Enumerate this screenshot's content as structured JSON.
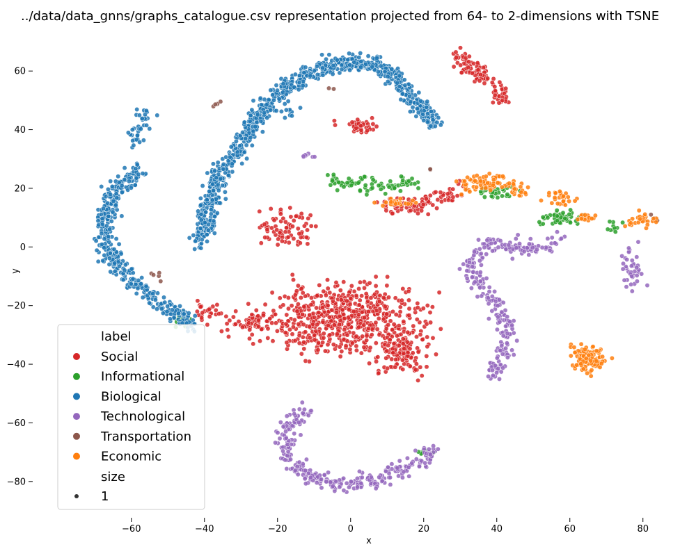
{
  "chart_data": {
    "type": "scatter",
    "title": "../data/data_gnns/graphs_catalogue.csv representation projected from 64- to 2-dimensions with TSNE",
    "xlabel": "x",
    "ylabel": "y",
    "xlim": [
      -75,
      85
    ],
    "ylim": [
      -90,
      70
    ],
    "xticks": [
      -60,
      -40,
      -20,
      0,
      20,
      40,
      60,
      80
    ],
    "yticks": [
      60,
      40,
      20,
      0,
      -20,
      -40,
      -60,
      -80
    ],
    "xtick_labels": [
      "−60",
      "−40",
      "−20",
      "0",
      "20",
      "40",
      "60",
      "80"
    ],
    "ytick_labels": [
      "60",
      "40",
      "20",
      "0",
      "−20",
      "−40",
      "−60",
      "−80"
    ],
    "grid": false,
    "legend": {
      "placement": "lower-left",
      "title": "label",
      "size_title": "size",
      "size_values": [
        "1"
      ]
    },
    "series": [
      {
        "name": "Social",
        "color": "#d62728",
        "clusters": [
          {
            "shape": "blob",
            "center": [
              -1,
              -25
            ],
            "spread": [
              17,
              10
            ],
            "n": 620
          },
          {
            "shape": "blob",
            "center": [
              14,
              -36
            ],
            "spread": [
              6,
              6
            ],
            "n": 120
          },
          {
            "shape": "blob",
            "center": [
              -26,
              -26
            ],
            "spread": [
              7,
              3
            ],
            "n": 70
          },
          {
            "shape": "blob",
            "center": [
              -17,
              7
            ],
            "spread": [
              6,
              5
            ],
            "n": 80
          },
          {
            "shape": "blob",
            "center": [
              3,
              41
            ],
            "spread": [
              5,
              2
            ],
            "n": 40
          },
          {
            "shape": "arc",
            "points": [
              [
                29,
                65
              ],
              [
                34,
                60
              ],
              [
                40,
                54
              ],
              [
                42,
                50
              ]
            ],
            "n": 110
          },
          {
            "shape": "arc",
            "points": [
              [
                9,
                14
              ],
              [
                18,
                14
              ],
              [
                26,
                17
              ],
              [
                31,
                20
              ]
            ],
            "n": 90
          },
          {
            "shape": "blob",
            "center": [
              -40,
              -22
            ],
            "spread": [
              4,
              3
            ],
            "n": 25
          }
        ]
      },
      {
        "name": "Informational",
        "color": "#2ca02c",
        "clusters": [
          {
            "shape": "arc",
            "points": [
              [
                -6,
                23
              ],
              [
                4,
                21
              ],
              [
                12,
                21
              ],
              [
                18,
                22
              ]
            ],
            "n": 80
          },
          {
            "shape": "blob",
            "center": [
              57,
              10
            ],
            "spread": [
              5,
              2
            ],
            "n": 50
          },
          {
            "shape": "blob",
            "center": [
              40,
              19
            ],
            "spread": [
              4,
              2
            ],
            "n": 30
          },
          {
            "shape": "blob",
            "center": [
              -46,
              -25
            ],
            "spread": [
              3,
              2
            ],
            "n": 25
          },
          {
            "shape": "blob",
            "center": [
              20,
              -70
            ],
            "spread": [
              3,
              1
            ],
            "n": 8
          },
          {
            "shape": "blob",
            "center": [
              72,
              7
            ],
            "spread": [
              2,
              2
            ],
            "n": 10
          }
        ]
      },
      {
        "name": "Biological",
        "color": "#1f77b4",
        "clusters": [
          {
            "shape": "arc",
            "points": [
              [
                -41,
                2
              ],
              [
                -37,
                22
              ],
              [
                -31,
                33
              ],
              [
                -24,
                47
              ],
              [
                -16,
                56
              ],
              [
                -8,
                61
              ],
              [
                0,
                63
              ],
              [
                8,
                62
              ],
              [
                13,
                57
              ],
              [
                18,
                49
              ],
              [
                23,
                42
              ]
            ],
            "n": 900
          },
          {
            "shape": "arc",
            "points": [
              [
                -58,
                26
              ],
              [
                -65,
                18
              ],
              [
                -68,
                6
              ],
              [
                -65,
                -5
              ],
              [
                -59,
                -12
              ],
              [
                -51,
                -20
              ],
              [
                -43,
                -27
              ]
            ],
            "n": 420
          },
          {
            "shape": "arc",
            "points": [
              [
                -60,
                35
              ],
              [
                -58,
                40
              ],
              [
                -56,
                47
              ]
            ],
            "n": 40
          },
          {
            "shape": "blob",
            "center": [
              -17,
              46
            ],
            "spread": [
              2,
              2
            ],
            "n": 10
          }
        ]
      },
      {
        "name": "Technological",
        "color": "#9467bd",
        "clusters": [
          {
            "shape": "arc",
            "points": [
              [
                -11,
                -55
              ],
              [
                -17,
                -60
              ],
              [
                -18,
                -70
              ],
              [
                -12,
                -78
              ],
              [
                -2,
                -81
              ],
              [
                6,
                -80
              ],
              [
                14,
                -76
              ],
              [
                20,
                -72
              ],
              [
                23,
                -69
              ]
            ],
            "n": 300
          },
          {
            "shape": "arc",
            "points": [
              [
                33,
                -7
              ],
              [
                36,
                -13
              ],
              [
                40,
                -19
              ],
              [
                43,
                -28
              ],
              [
                42,
                -37
              ],
              [
                38,
                -44
              ]
            ],
            "n": 150
          },
          {
            "shape": "arc",
            "points": [
              [
                33,
                -7
              ],
              [
                36,
                0
              ],
              [
                44,
                0
              ],
              [
                52,
                0
              ],
              [
                57,
                3
              ]
            ],
            "n": 120
          },
          {
            "shape": "arc",
            "points": [
              [
                76,
                0
              ],
              [
                77,
                -7
              ],
              [
                77,
                -13
              ]
            ],
            "n": 40
          },
          {
            "shape": "blob",
            "center": [
              -12,
              31
            ],
            "spread": [
              2,
              1
            ],
            "n": 8
          }
        ]
      },
      {
        "name": "Transportation",
        "color": "#8c564b",
        "clusters": [
          {
            "shape": "blob",
            "center": [
              -37,
              49
            ],
            "spread": [
              1,
              1
            ],
            "n": 4
          },
          {
            "shape": "blob",
            "center": [
              -53,
              -10
            ],
            "spread": [
              2,
              2
            ],
            "n": 5
          },
          {
            "shape": "blob",
            "center": [
              83,
              10
            ],
            "spread": [
              1,
              1
            ],
            "n": 3
          },
          {
            "shape": "blob",
            "center": [
              -5,
              54
            ],
            "spread": [
              1,
              1
            ],
            "n": 2
          },
          {
            "shape": "blob",
            "center": [
              22,
              26
            ],
            "spread": [
              1,
              1
            ],
            "n": 2
          }
        ]
      },
      {
        "name": "Economic",
        "color": "#ff7f0e",
        "clusters": [
          {
            "shape": "arc",
            "points": [
              [
                31,
                21
              ],
              [
                38,
                22
              ],
              [
                44,
                21
              ],
              [
                48,
                19
              ]
            ],
            "n": 90
          },
          {
            "shape": "blob",
            "center": [
              65,
              -38
            ],
            "spread": [
              4,
              4
            ],
            "n": 110
          },
          {
            "shape": "arc",
            "points": [
              [
                76,
                9
              ],
              [
                80,
                10
              ],
              [
                83,
                10
              ]
            ],
            "n": 30
          },
          {
            "shape": "blob",
            "center": [
              57,
              17
            ],
            "spread": [
              3,
              2
            ],
            "n": 30
          },
          {
            "shape": "blob",
            "center": [
              13,
              15
            ],
            "spread": [
              4,
              1
            ],
            "n": 25
          },
          {
            "shape": "blob",
            "center": [
              65,
              10
            ],
            "spread": [
              2,
              1
            ],
            "n": 15
          }
        ]
      }
    ]
  }
}
